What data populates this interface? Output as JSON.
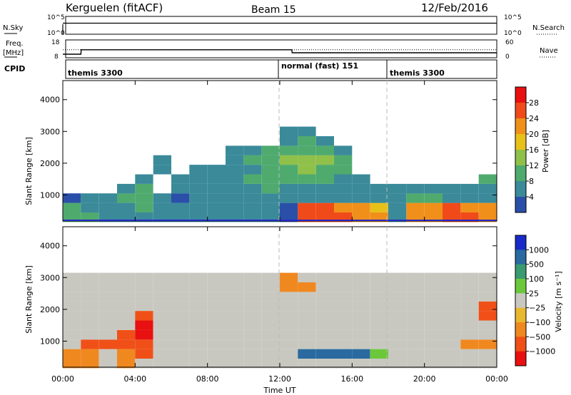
{
  "header": {
    "station": "Kerguelen (fitACF)",
    "beam": "Beam 15",
    "date": "12/Feb/2016"
  },
  "top_panel": {
    "left_label": "N.Sky",
    "right_label": "N.Search",
    "ticks_left": [
      "10^5",
      "10^0"
    ],
    "ticks_right": [
      "10^5",
      "10^0"
    ]
  },
  "freq_panel": {
    "left_label_line1": "Freq.",
    "left_label_line2": "[MHz]",
    "right_label": "Nave",
    "ticks_left": [
      "18",
      "8"
    ],
    "ticks_right": [
      "60",
      "0"
    ]
  },
  "cpid_panel": {
    "label": "CPID",
    "modes": [
      "themis 3300",
      "normal (fast) 151",
      "themis 3300"
    ]
  },
  "power_panel": {
    "ylabel": "Slant Range [km]",
    "yticks": [
      "1000",
      "2000",
      "3000",
      "4000"
    ],
    "colorbar_label": "Power [dB]",
    "colorbar_ticks": [
      "4",
      "8",
      "12",
      "16",
      "20",
      "24",
      "28"
    ]
  },
  "velocity_panel": {
    "ylabel": "Slant Range [km]",
    "yticks": [
      "1000",
      "2000",
      "3000",
      "4000"
    ],
    "colorbar_label": "Velocity [m s⁻¹]",
    "colorbar_ticks": [
      "1000",
      "500",
      "100",
      "25",
      "−25",
      "−100",
      "−500",
      "−1000"
    ]
  },
  "x_axis": {
    "label": "Time UT",
    "ticks": [
      "00:00",
      "04:00",
      "08:00",
      "12:00",
      "16:00",
      "20:00",
      "00:00"
    ]
  },
  "colors": {
    "power_scale": [
      "#1a1adb",
      "#2a4fa8",
      "#3a8a9a",
      "#4faa6e",
      "#8fc04a",
      "#e8c01a",
      "#f0901a",
      "#f04a1a",
      "#e81010"
    ],
    "velocity_scale": [
      "#1a2ac8",
      "#2a6aa0",
      "#3a9a70",
      "#6cc83a",
      "#c8c8c0",
      "#e8b830",
      "#f08820",
      "#f05018",
      "#e81010"
    ]
  },
  "chart_data": [
    {
      "type": "line",
      "title": "Kerguelen (fitACF)",
      "series": [
        {
          "name": "N.Sky",
          "x": [
            "00:00",
            "01:00",
            "12:00",
            "13:00",
            "16:00",
            "24:00"
          ],
          "values": [
            100000,
            100000,
            100000,
            120000,
            100000,
            100000
          ]
        }
      ]
    },
    {
      "type": "line",
      "series": [
        {
          "name": "Freq.",
          "x": [
            "00:00",
            "01:00",
            "01:01",
            "12:40",
            "12:41",
            "24:00"
          ],
          "values": [
            10,
            10,
            12.5,
            12.5,
            10.8,
            10.8
          ]
        },
        {
          "name": "Nave",
          "x": [
            "00:00",
            "01:00",
            "12:40",
            "24:00"
          ],
          "values": [
            27,
            27,
            27,
            27
          ]
        }
      ]
    },
    {
      "type": "heatmap",
      "title": "Power [dB]",
      "ylabel": "Slant Range [km]",
      "xlabel": "Time UT",
      "xlim": [
        "00:00",
        "24:00"
      ],
      "ylim": [
        180,
        4600
      ],
      "clim": [
        0,
        32
      ],
      "x_hours": [
        0,
        1,
        2,
        3,
        4,
        5,
        6,
        7,
        8,
        9,
        10,
        11,
        12,
        13,
        14,
        15,
        16,
        17,
        18,
        19,
        20,
        21,
        22,
        23
      ],
      "range_bins_km": [
        300,
        600,
        900,
        1200,
        1500,
        1800,
        2100,
        2400,
        2700,
        3000
      ],
      "values": [
        [
          14,
          12,
          8,
          10,
          10,
          8,
          8,
          8,
          8,
          8,
          8,
          8,
          6,
          28,
          26,
          26,
          24,
          24,
          10,
          24,
          24,
          26,
          26,
          24
        ],
        [
          14,
          10,
          8,
          10,
          12,
          10,
          8,
          8,
          8,
          8,
          8,
          8,
          6,
          26,
          26,
          24,
          22,
          20,
          10,
          24,
          24,
          26,
          24,
          22
        ],
        [
          6,
          8,
          10,
          12,
          14,
          8,
          6,
          8,
          8,
          8,
          8,
          10,
          8,
          10,
          8,
          8,
          8,
          8,
          10,
          12,
          12,
          10,
          10,
          8
        ],
        [
          0,
          0,
          0,
          10,
          12,
          0,
          10,
          10,
          10,
          10,
          10,
          12,
          10,
          10,
          10,
          10,
          10,
          10,
          8,
          8,
          8,
          8,
          8,
          10
        ],
        [
          0,
          0,
          0,
          0,
          10,
          0,
          10,
          10,
          10,
          10,
          12,
          12,
          14,
          12,
          12,
          10,
          10,
          0,
          0,
          0,
          0,
          0,
          0,
          12
        ],
        [
          0,
          0,
          0,
          0,
          0,
          8,
          0,
          8,
          8,
          10,
          10,
          12,
          14,
          16,
          14,
          12,
          0,
          0,
          0,
          0,
          0,
          0,
          0,
          0
        ],
        [
          0,
          0,
          0,
          0,
          0,
          8,
          0,
          0,
          0,
          10,
          12,
          14,
          16,
          16,
          16,
          14,
          0,
          0,
          0,
          0,
          0,
          0,
          0,
          0
        ],
        [
          0,
          0,
          0,
          0,
          0,
          0,
          0,
          0,
          0,
          8,
          10,
          12,
          12,
          14,
          12,
          10,
          0,
          0,
          0,
          0,
          0,
          0,
          0,
          0
        ],
        [
          0,
          0,
          0,
          0,
          0,
          0,
          0,
          0,
          0,
          0,
          0,
          0,
          10,
          12,
          10,
          0,
          0,
          0,
          0,
          0,
          0,
          0,
          0,
          0
        ],
        [
          0,
          0,
          0,
          0,
          0,
          0,
          0,
          0,
          0,
          0,
          0,
          0,
          10,
          10,
          0,
          0,
          0,
          0,
          0,
          0,
          0,
          0,
          0,
          0
        ]
      ]
    },
    {
      "type": "heatmap",
      "title": "Velocity [m s⁻¹]",
      "ylabel": "Slant Range [km]",
      "xlabel": "Time UT",
      "xlim": [
        "00:00",
        "24:00"
      ],
      "ylim": [
        180,
        4600
      ],
      "clim": [
        -1000,
        1000
      ],
      "x_hours": [
        0,
        1,
        2,
        3,
        4,
        5,
        6,
        7,
        8,
        9,
        10,
        11,
        12,
        13,
        14,
        15,
        16,
        17,
        18,
        19,
        20,
        21,
        22,
        23
      ],
      "range_bins_km": [
        300,
        600,
        900,
        1200,
        1500,
        1800,
        2100,
        2400,
        2700,
        3000
      ],
      "values": [
        [
          -100,
          -50,
          0,
          -100,
          0,
          0,
          0,
          0,
          0,
          0,
          0,
          0,
          0,
          0,
          0,
          0,
          0,
          0,
          0,
          0,
          0,
          0,
          0,
          0
        ],
        [
          -100,
          -50,
          0,
          -100,
          -200,
          0,
          0,
          0,
          0,
          0,
          0,
          0,
          0,
          150,
          150,
          150,
          120,
          100,
          0,
          0,
          0,
          0,
          0,
          0
        ],
        [
          0,
          -200,
          -300,
          -400,
          -500,
          0,
          0,
          0,
          0,
          0,
          0,
          0,
          0,
          0,
          0,
          0,
          0,
          0,
          0,
          0,
          0,
          0,
          -100,
          -100
        ],
        [
          0,
          0,
          0,
          -400,
          -600,
          0,
          0,
          0,
          0,
          0,
          0,
          0,
          0,
          0,
          0,
          0,
          0,
          0,
          0,
          0,
          0,
          0,
          0,
          0
        ],
        [
          0,
          0,
          0,
          0,
          -600,
          0,
          0,
          0,
          0,
          0,
          0,
          0,
          0,
          0,
          0,
          0,
          0,
          0,
          0,
          0,
          0,
          0,
          0,
          0
        ],
        [
          0,
          0,
          0,
          0,
          -500,
          0,
          0,
          0,
          0,
          0,
          0,
          0,
          0,
          0,
          0,
          0,
          0,
          0,
          0,
          0,
          0,
          0,
          0,
          -300
        ],
        [
          0,
          0,
          0,
          0,
          0,
          0,
          0,
          0,
          0,
          0,
          0,
          0,
          0,
          0,
          0,
          0,
          0,
          0,
          0,
          0,
          0,
          0,
          0,
          -300
        ],
        [
          0,
          0,
          0,
          0,
          0,
          0,
          0,
          0,
          0,
          0,
          0,
          0,
          0,
          0,
          0,
          0,
          0,
          0,
          0,
          0,
          0,
          0,
          0,
          0
        ],
        [
          0,
          0,
          0,
          0,
          0,
          0,
          0,
          0,
          0,
          0,
          0,
          0,
          -100,
          -100,
          0,
          0,
          0,
          0,
          0,
          0,
          0,
          0,
          0,
          0
        ],
        [
          0,
          0,
          0,
          0,
          0,
          0,
          0,
          0,
          0,
          0,
          0,
          0,
          -100,
          0,
          0,
          0,
          0,
          0,
          0,
          0,
          0,
          0,
          0,
          0
        ]
      ]
    }
  ]
}
